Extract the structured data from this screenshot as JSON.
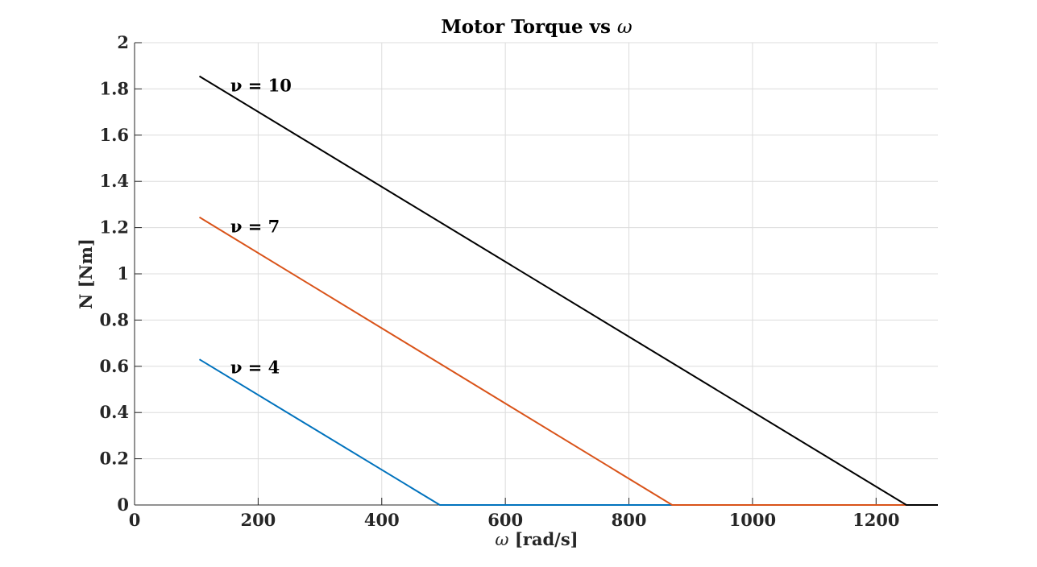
{
  "chart_data": {
    "type": "line",
    "title_main": "Motor Torque vs ",
    "title_symbol": "ω",
    "xlabel_symbol": "ω",
    "xlabel_rest": " [rad/s]",
    "ylabel": "N [Nm]",
    "xlim": [
      0,
      1300
    ],
    "ylim": [
      0,
      2
    ],
    "xticks": [
      0,
      200,
      400,
      600,
      800,
      1000,
      1200
    ],
    "xtick_labels": [
      "0",
      "200",
      "400",
      "600",
      "800",
      "1000",
      "1200"
    ],
    "yticks": [
      0,
      0.2,
      0.4,
      0.6,
      0.8,
      1,
      1.2,
      1.4,
      1.6,
      1.8,
      2
    ],
    "ytick_labels": [
      "0",
      "0.2",
      "0.4",
      "0.6",
      "0.8",
      "1",
      "1.2",
      "1.4",
      "1.6",
      "1.8",
      "2"
    ],
    "grid": true,
    "series": [
      {
        "color": "#0072BD",
        "x": [
          105,
          494,
          1300
        ],
        "y": [
          0.63,
          0,
          0
        ]
      },
      {
        "color": "#D95319",
        "x": [
          105,
          870,
          1300
        ],
        "y": [
          1.245,
          0,
          0
        ]
      },
      {
        "color": "#000000",
        "x": [
          105,
          1249,
          1300
        ],
        "y": [
          1.855,
          0,
          0
        ]
      }
    ],
    "annotations": [
      {
        "text": "ν = 4",
        "x": 155,
        "y": 0.57
      },
      {
        "text": "ν = 7",
        "x": 155,
        "y": 1.18
      },
      {
        "text": "ν = 10",
        "x": 155,
        "y": 1.79
      }
    ]
  }
}
